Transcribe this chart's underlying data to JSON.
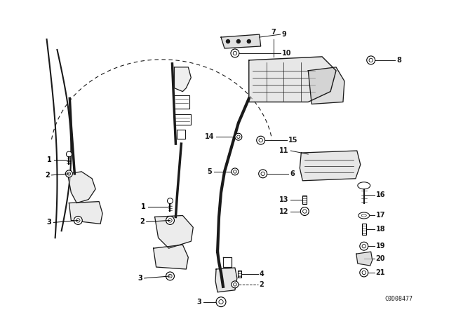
{
  "bg_color": "#ffffff",
  "diagram_color": "#1a1a1a",
  "catalog_number": "C0D08477",
  "line_color": "#1a1a1a"
}
